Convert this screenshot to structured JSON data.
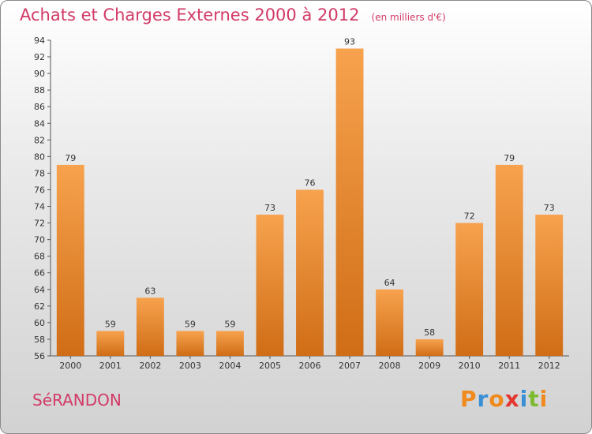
{
  "header": {
    "title": "Achats et Charges Externes 2000 à 2012",
    "subtitle": "(en milliers d'€)"
  },
  "footer": {
    "commune": "SéRANDON",
    "logo_letters": [
      "P",
      "r",
      "o",
      "x",
      "i",
      "t",
      "i"
    ],
    "logo_colors": [
      "#f08a1c",
      "#3b8fd4",
      "#f08a1c",
      "#e2362e",
      "#3b8fd4",
      "#7cba2f",
      "#f08a1c"
    ]
  },
  "chart_data": {
    "type": "bar",
    "title": "Achats et Charges Externes 2000 à 2012",
    "subtitle": "(en milliers d'€)",
    "categories": [
      "2000",
      "2001",
      "2002",
      "2003",
      "2004",
      "2005",
      "2006",
      "2007",
      "2008",
      "2009",
      "2010",
      "2011",
      "2012"
    ],
    "values": [
      79,
      59,
      63,
      59,
      59,
      73,
      76,
      93,
      64,
      58,
      72,
      79,
      73
    ],
    "ylim": [
      56,
      94
    ],
    "ytick_step": 2,
    "grid": false,
    "bar_color_top": "#f7a24e",
    "bar_color_bottom": "#d06d16"
  }
}
